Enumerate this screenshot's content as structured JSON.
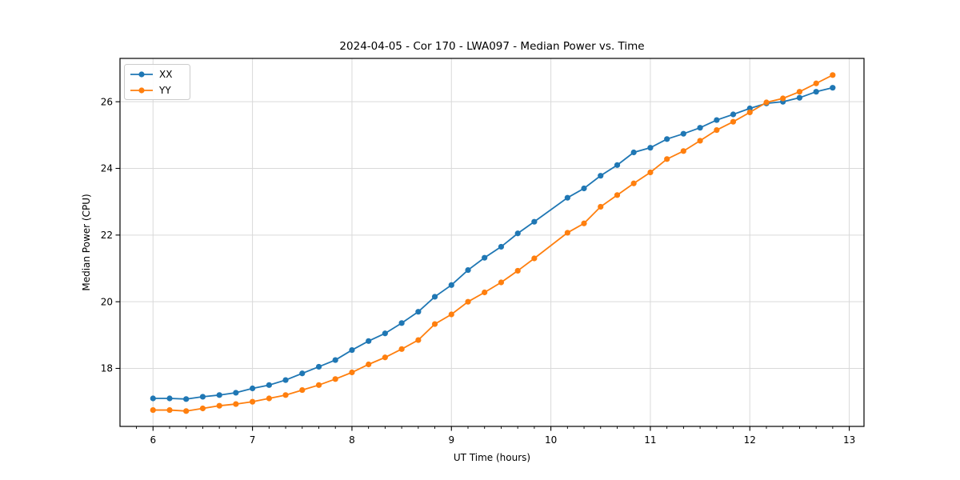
{
  "chart_data": {
    "type": "line",
    "title": "2024-04-05 - Cor 170 - LWA097 - Median Power vs. Time",
    "xlabel": "UT Time (hours)",
    "ylabel": "Median Power (CPU)",
    "xlim": [
      5.668,
      13.148
    ],
    "ylim": [
      16.26,
      27.3
    ],
    "grid": true,
    "legend_position": "upper-left",
    "x_ticks": [
      6,
      7,
      8,
      9,
      10,
      11,
      12,
      13
    ],
    "y_ticks": [
      18,
      20,
      22,
      24,
      26
    ],
    "x_minor_step": 0.16667,
    "x": [
      6.0,
      6.167,
      6.333,
      6.5,
      6.667,
      6.833,
      7.0,
      7.167,
      7.333,
      7.5,
      7.667,
      7.833,
      8.0,
      8.167,
      8.333,
      8.5,
      8.667,
      8.833,
      9.0,
      9.167,
      9.333,
      9.5,
      9.667,
      9.833,
      10.167,
      10.333,
      10.5,
      10.667,
      10.833,
      11.0,
      11.167,
      11.333,
      11.5,
      11.667,
      11.833,
      12.0,
      12.167,
      12.333,
      12.5,
      12.667,
      12.833
    ],
    "series": [
      {
        "name": "XX",
        "color": "#1f77b4",
        "values": [
          17.1,
          17.1,
          17.08,
          17.15,
          17.2,
          17.27,
          17.4,
          17.5,
          17.65,
          17.85,
          18.05,
          18.25,
          18.55,
          18.82,
          19.05,
          19.36,
          19.7,
          20.15,
          20.5,
          20.95,
          21.32,
          21.65,
          22.05,
          22.4,
          23.12,
          23.4,
          23.78,
          24.1,
          24.48,
          24.62,
          24.88,
          25.04,
          25.22,
          25.45,
          25.62,
          25.8,
          25.95,
          26.0,
          26.12,
          26.3,
          26.42
        ]
      },
      {
        "name": "YY",
        "color": "#ff7f0e",
        "values": [
          16.75,
          16.75,
          16.72,
          16.8,
          16.88,
          16.93,
          17.0,
          17.1,
          17.2,
          17.35,
          17.5,
          17.68,
          17.88,
          18.12,
          18.33,
          18.58,
          18.85,
          19.33,
          19.62,
          20.0,
          20.28,
          20.58,
          20.93,
          21.3,
          22.07,
          22.35,
          22.85,
          23.2,
          23.55,
          23.88,
          24.28,
          24.52,
          24.83,
          25.15,
          25.4,
          25.68,
          25.98,
          26.1,
          26.3,
          26.55,
          26.8
        ]
      }
    ],
    "colors": {
      "grid": "#d9d9d9",
      "spine": "#000000",
      "legend_border": "#cccccc",
      "background": "#ffffff"
    }
  }
}
